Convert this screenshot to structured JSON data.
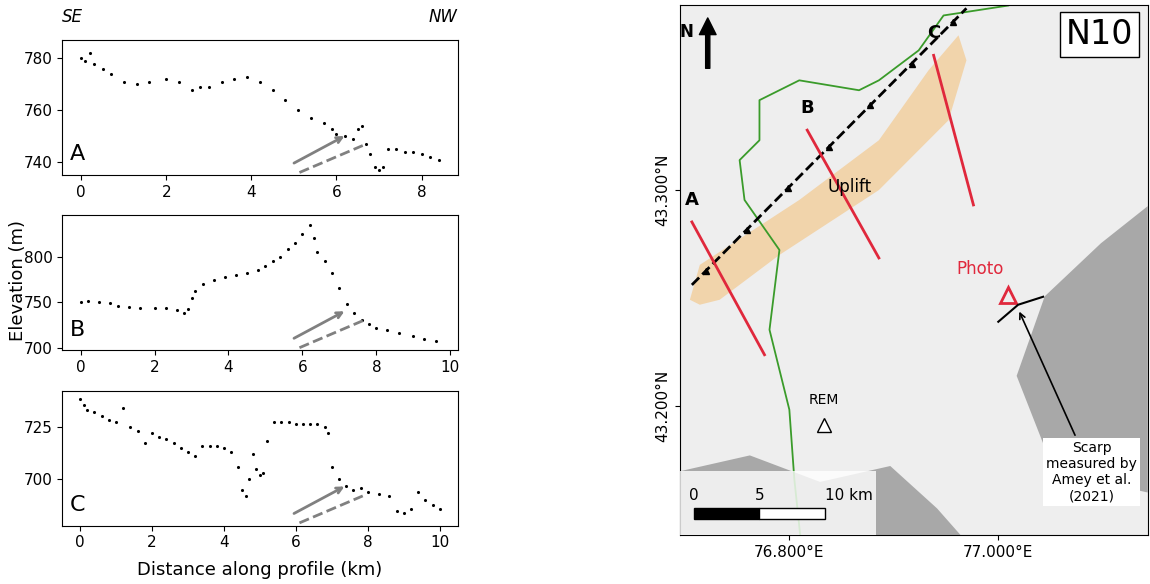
{
  "header": {
    "left": "SE",
    "right": "NW"
  },
  "y_label": "Elevation (m)",
  "x_label": "Distance along profile (km)",
  "chart_data": [
    {
      "type": "scatter",
      "annotation": "A",
      "color": "#000000",
      "marker": "o",
      "x": [
        0,
        0.1,
        0.2,
        0.3,
        0.5,
        0.7,
        1.0,
        1.3,
        1.6,
        2.0,
        2.3,
        2.6,
        2.8,
        3.0,
        3.3,
        3.6,
        3.9,
        4.2,
        4.5,
        4.8,
        5.1,
        5.4,
        5.7,
        5.9,
        6.0,
        6.2,
        6.4,
        6.5,
        6.6,
        6.7,
        6.8,
        6.9,
        7.0,
        7.1,
        7.2,
        7.4,
        7.6,
        7.8,
        8.0,
        8.2,
        8.4
      ],
      "values": [
        780,
        779,
        782,
        778,
        776,
        774,
        771,
        770,
        771,
        772,
        771,
        768,
        769,
        769,
        771,
        772,
        773,
        771,
        768,
        764,
        760,
        757,
        755,
        753,
        751,
        750,
        749,
        753,
        754,
        747,
        743,
        738,
        737,
        738,
        745,
        745,
        744,
        744,
        743,
        742,
        741
      ],
      "xlim": [
        -0.45,
        8.85
      ],
      "ylim": [
        735,
        787
      ],
      "xticks": [
        0,
        2,
        4,
        6,
        8
      ],
      "yticks": [
        740,
        760,
        780
      ]
    },
    {
      "type": "scatter",
      "annotation": "B",
      "color": "#000000",
      "marker": "o",
      "x": [
        0,
        0.2,
        0.5,
        0.8,
        1.0,
        1.3,
        1.6,
        2.0,
        2.3,
        2.6,
        2.8,
        2.9,
        3.0,
        3.1,
        3.3,
        3.6,
        3.9,
        4.2,
        4.5,
        4.8,
        5.0,
        5.2,
        5.4,
        5.6,
        5.8,
        6.0,
        6.2,
        6.3,
        6.4,
        6.6,
        6.8,
        7.0,
        7.2,
        7.4,
        7.6,
        7.8,
        8.0,
        8.3,
        8.6,
        9.0,
        9.3,
        9.6
      ],
      "values": [
        750,
        751,
        750,
        749,
        746,
        745,
        744,
        743,
        743,
        741,
        738,
        742,
        755,
        762,
        770,
        774,
        777,
        780,
        782,
        785,
        790,
        795,
        800,
        808,
        815,
        825,
        835,
        820,
        805,
        795,
        782,
        765,
        748,
        738,
        730,
        726,
        722,
        719,
        716,
        713,
        710,
        707
      ],
      "xlim": [
        -0.5,
        10.2
      ],
      "ylim": [
        697,
        845
      ],
      "xticks": [
        0,
        2,
        4,
        6,
        8,
        10
      ],
      "yticks": [
        700,
        750,
        800
      ]
    },
    {
      "type": "scatter",
      "annotation": "C",
      "color": "#000000",
      "marker": "o",
      "x": [
        0,
        0.1,
        0.2,
        0.4,
        0.6,
        0.8,
        1.0,
        1.2,
        1.4,
        1.6,
        1.8,
        2.0,
        2.2,
        2.4,
        2.6,
        2.8,
        3.0,
        3.2,
        3.4,
        3.6,
        3.8,
        4.0,
        4.2,
        4.4,
        4.5,
        4.6,
        4.7,
        4.8,
        4.9,
        5.0,
        5.1,
        5.2,
        5.4,
        5.6,
        5.8,
        6.0,
        6.2,
        6.4,
        6.6,
        6.8,
        6.9,
        7.0,
        7.2,
        7.4,
        7.6,
        7.8,
        8.0,
        8.3,
        8.6,
        8.8,
        9.0,
        9.2,
        9.4,
        9.6,
        9.8,
        10.0
      ],
      "values": [
        738,
        735,
        733,
        732,
        730,
        728,
        727,
        734,
        725,
        723,
        717,
        722,
        720,
        719,
        717,
        715,
        713,
        711,
        716,
        716,
        716,
        715,
        713,
        706,
        695,
        692,
        700,
        712,
        705,
        702,
        703,
        718,
        727,
        727,
        727,
        726,
        726,
        726,
        726,
        725,
        722,
        706,
        700,
        697,
        695,
        696,
        694,
        693,
        692,
        685,
        684,
        686,
        694,
        690,
        688,
        686
      ],
      "xlim": [
        -0.5,
        10.5
      ],
      "ylim": [
        678,
        742
      ],
      "xticks": [
        0,
        2,
        4,
        6,
        8,
        10
      ],
      "yticks": [
        700,
        725
      ]
    }
  ],
  "map": {
    "label": "N10",
    "north": "N",
    "xlim": [
      76.695,
      77.143
    ],
    "ylim": [
      43.14,
      43.386
    ],
    "xticks": [
      {
        "value": 76.8,
        "label": "76.800°E"
      },
      {
        "value": 77.0,
        "label": "77.000°E"
      }
    ],
    "yticks": [
      {
        "value": 43.3,
        "label": "43.300°N"
      },
      {
        "value": 43.2,
        "label": "43.200°N"
      }
    ],
    "region": {
      "label": "Uplift",
      "color": "#f3c98f",
      "lon": [
        76.7048,
        76.7143,
        76.8095,
        76.8857,
        76.9333,
        76.9619,
        76.9695,
        76.9524,
        76.8857,
        76.7905,
        76.7333,
        76.7143
      ],
      "lat": [
        43.2491,
        43.2653,
        43.2954,
        43.3231,
        43.3556,
        43.3718,
        43.3602,
        43.3324,
        43.3,
        43.2699,
        43.2491,
        43.2468
      ]
    },
    "fault": {
      "color": "#000000",
      "lon": [
        76.7067,
        76.9695
      ],
      "lat": [
        43.256,
        43.3843
      ]
    },
    "profiles": [
      {
        "label": "A",
        "color": "#e0283c",
        "lon": [
          76.7067,
          76.7762
        ],
        "lat": [
          43.2852,
          43.2236
        ]
      },
      {
        "label": "B",
        "color": "#e0283c",
        "lon": [
          76.8171,
          76.8857
        ],
        "lat": [
          43.3278,
          43.2685
        ]
      },
      {
        "label": "C",
        "color": "#e0283c",
        "lon": [
          76.9381,
          76.9762
        ],
        "lat": [
          43.3625,
          43.2931
        ]
      }
    ],
    "boundary": {
      "color": "#3a9b2a",
      "lon": [
        77.0095,
        76.9476,
        76.9238,
        76.8857,
        76.8667,
        76.8095,
        76.7714,
        76.7714,
        76.7524,
        76.7571,
        76.7905,
        76.781,
        76.8,
        76.8048,
        76.8143
      ],
      "lat": [
        43.3856,
        43.381,
        43.3648,
        43.3509,
        43.3463,
        43.3509,
        43.3417,
        43.3231,
        43.3139,
        43.2954,
        43.2722,
        43.2352,
        43.1981,
        43.1657,
        43.1218
      ]
    },
    "station": {
      "label": "REM",
      "lon": 76.8333,
      "lat": 43.1912
    },
    "photo": {
      "label": "Photo",
      "color": "#e0283c",
      "lon": 77.0095,
      "lat": 43.2514
    },
    "scarp": {
      "label": "Scarp\nmeasured by\nAmey et al.\n(2021)",
      "lon": [
        77.0,
        77.019,
        77.0429
      ],
      "lat": [
        43.2389,
        43.2468,
        43.2505
      ]
    },
    "scale_bar": {
      "labels": [
        "0",
        "5",
        "10 km"
      ]
    }
  }
}
